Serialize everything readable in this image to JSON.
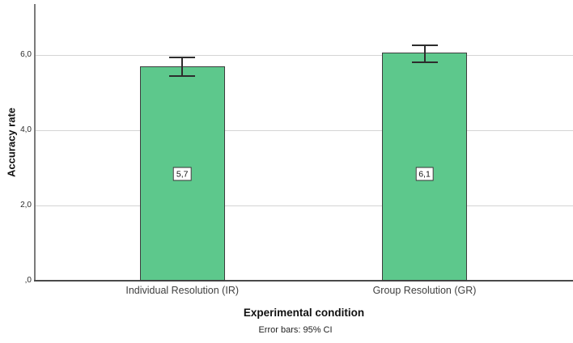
{
  "chart_data": {
    "type": "bar",
    "title": "",
    "categories": [
      "Individual Resolution (IR)",
      "Group Resolution (GR)"
    ],
    "values": [
      5.7,
      6.07
    ],
    "value_labels": [
      "5,7",
      "6,1"
    ],
    "error_bars": [
      {
        "low": 5.42,
        "high": 5.95
      },
      {
        "low": 5.79,
        "high": 6.28
      }
    ],
    "xlabel": "Experimental condition",
    "ylabel": "Accuracy rate",
    "footnote": "Error bars: 95% CI",
    "yticks": [
      0,
      2,
      4,
      6
    ],
    "ytick_labels": [
      ",0",
      "2,0",
      "4,0",
      "6,0"
    ],
    "ylim": [
      0,
      7.35
    ],
    "grid": true,
    "legend": "none",
    "colors": {
      "bar_fill": "#5dc88c",
      "bar_border": "#3d3d3d",
      "error_bar": "#2d2d2d",
      "gridline": "#d4d4d4",
      "baseline": "#4a4a4a",
      "y_axis_line": "#7a7a7a",
      "background": "#ffffff"
    }
  }
}
